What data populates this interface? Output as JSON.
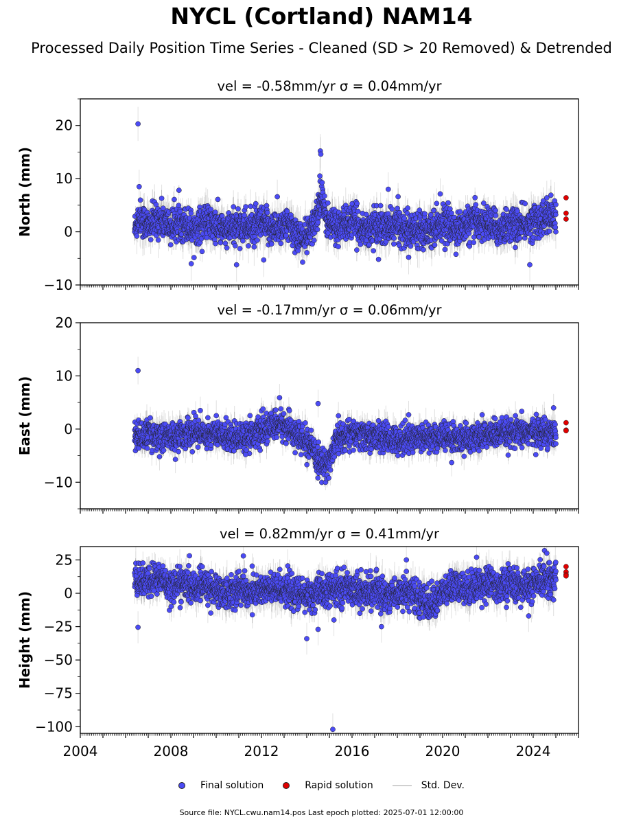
{
  "title": "NYCL (Cortland) NAM14",
  "subtitle": "Processed Daily Position Time Series - Cleaned (SD > 20 Removed) & Detrended",
  "legend": {
    "final": "Final solution",
    "rapid": "Rapid solution",
    "std": "Std. Dev."
  },
  "footer": "Source file: NYCL.cwu.nam14.pos  Last epoch plotted: 2025-07-01 12:00:00",
  "colors": {
    "final": "#4b4bf5",
    "rapid": "#e00000",
    "std": "#c8c8c8",
    "edge": "#202020"
  },
  "chart_data": [
    {
      "type": "scatter",
      "panel": "north",
      "title": "vel = -0.58mm/yr   σ = 0.04mm/yr",
      "xlabel": "",
      "ylabel": "North (mm)",
      "xlim": [
        2004,
        2026
      ],
      "ylim": [
        -10,
        25
      ],
      "yticks": [
        -10,
        0,
        10,
        20
      ],
      "yticklabels": [
        "−10",
        "0",
        "10",
        "20"
      ],
      "data_span": [
        2006.4,
        2025.0
      ],
      "series": [
        {
          "name": "Final solution",
          "trend_points": [
            [
              2006.4,
              0.5
            ],
            [
              2006.6,
              3.0
            ],
            [
              2007.0,
              1.0
            ],
            [
              2007.5,
              2.5
            ],
            [
              2008.0,
              1.0
            ],
            [
              2008.5,
              2.0
            ],
            [
              2009.0,
              0.5
            ],
            [
              2009.5,
              2.0
            ],
            [
              2010.0,
              1.0
            ],
            [
              2010.5,
              0.0
            ],
            [
              2011.0,
              1.5
            ],
            [
              2011.5,
              0.5
            ],
            [
              2012.0,
              1.5
            ],
            [
              2012.5,
              0.5
            ],
            [
              2013.0,
              1.5
            ],
            [
              2013.5,
              0.0
            ],
            [
              2013.9,
              -1.5
            ],
            [
              2014.3,
              1.0
            ],
            [
              2014.5,
              4.0
            ],
            [
              2014.65,
              8.0
            ],
            [
              2014.8,
              3.0
            ],
            [
              2015.0,
              1.5
            ],
            [
              2015.5,
              1.0
            ],
            [
              2016.0,
              2.0
            ],
            [
              2016.5,
              0.5
            ],
            [
              2017.0,
              1.0
            ],
            [
              2017.5,
              0.5
            ],
            [
              2018.0,
              1.5
            ],
            [
              2018.5,
              0.0
            ],
            [
              2019.0,
              1.0
            ],
            [
              2019.5,
              0.5
            ],
            [
              2020.0,
              2.0
            ],
            [
              2020.5,
              0.5
            ],
            [
              2021.0,
              1.0
            ],
            [
              2021.5,
              2.0
            ],
            [
              2022.0,
              1.5
            ],
            [
              2022.5,
              0.5
            ],
            [
              2023.0,
              1.5
            ],
            [
              2023.5,
              1.0
            ],
            [
              2024.0,
              2.0
            ],
            [
              2024.5,
              2.5
            ],
            [
              2025.0,
              3.0
            ]
          ],
          "scatter": 1.6,
          "outliers": [
            [
              2006.55,
              20.3
            ],
            [
              2006.6,
              8.5
            ],
            [
              2008.9,
              -6.0
            ],
            [
              2010.9,
              -6.2
            ],
            [
              2012.1,
              -5.3
            ],
            [
              2012.7,
              6.6
            ],
            [
              2014.6,
              15.2
            ],
            [
              2014.62,
              14.6
            ],
            [
              2014.58,
              10.5
            ],
            [
              2017.6,
              8.0
            ],
            [
              2018.5,
              -4.8
            ],
            [
              2019.6,
              4.0
            ],
            [
              2023.85,
              -6.2
            ],
            [
              2024.6,
              6.4
            ],
            [
              2025.0,
              0.0
            ]
          ]
        },
        {
          "name": "Rapid solution",
          "points": [
            [
              2025.45,
              6.4
            ],
            [
              2025.45,
              3.5
            ],
            [
              2025.45,
              2.4
            ]
          ]
        }
      ]
    },
    {
      "type": "scatter",
      "panel": "east",
      "title": "vel = -0.17mm/yr   σ = 0.06mm/yr",
      "xlabel": "",
      "ylabel": "East (mm)",
      "xlim": [
        2004,
        2026
      ],
      "ylim": [
        -15,
        20
      ],
      "yticks": [
        -10,
        0,
        10,
        20
      ],
      "yticklabels": [
        "−10",
        "0",
        "10",
        "20"
      ],
      "data_span": [
        2006.4,
        2025.0
      ],
      "series": [
        {
          "name": "Final solution",
          "trend_points": [
            [
              2006.4,
              -1.5
            ],
            [
              2007.0,
              -1.0
            ],
            [
              2008.0,
              -1.5
            ],
            [
              2009.0,
              -0.5
            ],
            [
              2010.0,
              -1.0
            ],
            [
              2011.0,
              -1.5
            ],
            [
              2012.0,
              -0.5
            ],
            [
              2012.8,
              1.0
            ],
            [
              2013.3,
              0.0
            ],
            [
              2013.8,
              -2.0
            ],
            [
              2014.2,
              -3.5
            ],
            [
              2014.5,
              -6.0
            ],
            [
              2014.8,
              -7.0
            ],
            [
              2015.1,
              -5.0
            ],
            [
              2015.3,
              -2.0
            ],
            [
              2016.0,
              -1.0
            ],
            [
              2017.0,
              -1.5
            ],
            [
              2018.0,
              -2.0
            ],
            [
              2019.0,
              -1.5
            ],
            [
              2020.0,
              -1.5
            ],
            [
              2021.0,
              -2.0
            ],
            [
              2022.0,
              -1.0
            ],
            [
              2023.0,
              -1.0
            ],
            [
              2024.0,
              -0.5
            ],
            [
              2025.0,
              -0.5
            ]
          ],
          "scatter": 1.3,
          "outliers": [
            [
              2006.55,
              11.0
            ],
            [
              2007.5,
              -5.2
            ],
            [
              2008.2,
              -5.7
            ],
            [
              2009.3,
              3.5
            ],
            [
              2011.3,
              -4.8
            ],
            [
              2012.8,
              5.9
            ],
            [
              2014.5,
              4.8
            ],
            [
              2015.4,
              2.5
            ],
            [
              2018.5,
              2.7
            ],
            [
              2020.4,
              -6.3
            ],
            [
              2024.9,
              4.0
            ],
            [
              2025.0,
              -1.6
            ]
          ]
        },
        {
          "name": "Rapid solution",
          "points": [
            [
              2025.45,
              1.2
            ],
            [
              2025.45,
              -0.2
            ],
            [
              2025.45,
              -0.3
            ]
          ]
        }
      ]
    },
    {
      "type": "scatter",
      "panel": "height",
      "title": "vel = 0.82mm/yr   σ = 0.41mm/yr",
      "xlabel": "",
      "ylabel": "Height (mm)",
      "xlim": [
        2004,
        2026
      ],
      "ylim": [
        -105,
        35
      ],
      "yticks": [
        -100,
        -75,
        -50,
        -25,
        0,
        25
      ],
      "yticklabels": [
        "−100",
        "−75",
        "−50",
        "−25",
        "0",
        "25"
      ],
      "xticks": [
        2004,
        2008,
        2012,
        2016,
        2020,
        2024
      ],
      "xticklabels": [
        "2004",
        "2008",
        "2012",
        "2016",
        "2020",
        "2024"
      ],
      "data_span": [
        2006.4,
        2025.0
      ],
      "series": [
        {
          "name": "Final solution",
          "trend_points": [
            [
              2006.4,
              10
            ],
            [
              2007.0,
              8
            ],
            [
              2007.5,
              12
            ],
            [
              2008.0,
              5
            ],
            [
              2008.5,
              8
            ],
            [
              2009.0,
              4
            ],
            [
              2009.5,
              6
            ],
            [
              2010.0,
              2
            ],
            [
              2010.5,
              0
            ],
            [
              2011.0,
              4
            ],
            [
              2011.5,
              0
            ],
            [
              2012.0,
              3
            ],
            [
              2012.5,
              2
            ],
            [
              2013.0,
              4
            ],
            [
              2013.5,
              0
            ],
            [
              2014.0,
              -2
            ],
            [
              2014.5,
              0
            ],
            [
              2015.0,
              2
            ],
            [
              2015.5,
              4
            ],
            [
              2016.0,
              5
            ],
            [
              2016.5,
              0
            ],
            [
              2017.0,
              2
            ],
            [
              2017.5,
              -2
            ],
            [
              2018.0,
              0
            ],
            [
              2018.5,
              2
            ],
            [
              2019.0,
              -5
            ],
            [
              2019.5,
              -8
            ],
            [
              2020.0,
              0
            ],
            [
              2020.5,
              5
            ],
            [
              2021.0,
              3
            ],
            [
              2021.5,
              6
            ],
            [
              2022.0,
              8
            ],
            [
              2022.5,
              5
            ],
            [
              2023.0,
              8
            ],
            [
              2023.5,
              4
            ],
            [
              2024.0,
              6
            ],
            [
              2024.5,
              10
            ],
            [
              2025.0,
              12
            ]
          ],
          "scatter": 6,
          "outliers": [
            [
              2006.55,
              -25.5
            ],
            [
              2011.2,
              28
            ],
            [
              2014.0,
              -34
            ],
            [
              2014.5,
              -27
            ],
            [
              2015.15,
              -102
            ],
            [
              2015.2,
              -20
            ],
            [
              2017.3,
              -25
            ],
            [
              2018.4,
              25
            ],
            [
              2021.5,
              27
            ],
            [
              2023.8,
              -17
            ],
            [
              2024.5,
              32
            ],
            [
              2024.6,
              30
            ],
            [
              2024.9,
              -5
            ],
            [
              2025.0,
              10
            ]
          ]
        },
        {
          "name": "Rapid solution",
          "points": [
            [
              2025.45,
              20
            ],
            [
              2025.45,
              16
            ],
            [
              2025.45,
              14
            ],
            [
              2025.45,
              13
            ]
          ]
        }
      ]
    }
  ]
}
